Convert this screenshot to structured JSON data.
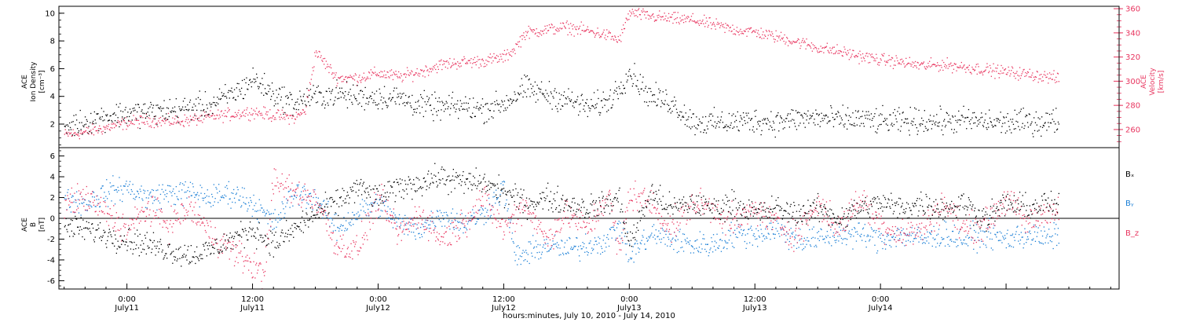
{
  "colors": {
    "black": "#000000",
    "pink": "#e8355f",
    "blue": "#1b7fd6"
  },
  "chart_data": [
    {
      "type": "scatter",
      "panel": "top",
      "ylabel_left": [
        "ACE",
        "Ion Density",
        "[cm⁻³]"
      ],
      "ylabel_right": [
        "ACE",
        "Velocity",
        "[km/s]"
      ],
      "x_range_hours": [
        -6.5,
        94.8
      ],
      "ylim_left": [
        0.3,
        10.5
      ],
      "ylim_right": [
        245,
        362
      ],
      "yticks_left": [
        2,
        4,
        6,
        8,
        10
      ],
      "yticks_right": [
        260,
        280,
        300,
        320,
        340,
        360
      ],
      "series": [
        {
          "name": "Ion Density",
          "axis": "left",
          "color": "black",
          "x": [
            -6,
            -4,
            -2,
            0,
            2,
            4,
            6,
            8,
            10,
            11,
            12,
            14,
            16,
            17,
            18,
            20,
            22,
            24,
            26,
            28,
            30,
            32,
            34,
            36,
            38,
            40,
            42,
            44,
            46,
            48,
            50,
            52,
            54,
            56,
            58,
            60,
            62,
            64,
            66,
            68,
            70,
            72,
            74,
            76,
            78,
            80,
            82,
            84,
            86,
            88,
            89
          ],
          "y": [
            1.8,
            2.2,
            2.6,
            2.8,
            2.9,
            3.0,
            3.2,
            3.4,
            4.2,
            4.6,
            5.3,
            4.2,
            3.5,
            3.9,
            4.0,
            4.2,
            4.0,
            4.0,
            3.9,
            3.4,
            3.2,
            3.3,
            3.1,
            3.5,
            4.6,
            4.2,
            3.8,
            3.2,
            3.7,
            5.8,
            4.0,
            3.6,
            2.2,
            2.1,
            2.2,
            2.3,
            2.2,
            2.4,
            2.5,
            2.3,
            2.4,
            2.2,
            2.2,
            2.3,
            2.2,
            2.3,
            2.2,
            2.1,
            2.2,
            2.2,
            2.3
          ],
          "spread": 0.45
        },
        {
          "name": "Velocity",
          "axis": "right",
          "color": "pink",
          "x": [
            -6,
            -4,
            -2,
            0,
            2,
            4,
            6,
            8,
            10,
            12,
            14,
            16,
            17,
            18,
            20,
            22,
            24,
            26,
            28,
            30,
            32,
            34,
            36,
            37,
            38,
            40,
            42,
            44,
            46,
            47,
            48,
            50,
            52,
            54,
            56,
            58,
            60,
            62,
            64,
            66,
            68,
            70,
            72,
            74,
            76,
            78,
            80,
            82,
            84,
            86,
            88,
            89
          ],
          "y": [
            256,
            258,
            262,
            266,
            268,
            267,
            268,
            271,
            273,
            275,
            272,
            270,
            276,
            325,
            303,
            303,
            307,
            304,
            308,
            314,
            316,
            317,
            320,
            327,
            340,
            343,
            345,
            342,
            338,
            334,
            357,
            354,
            352,
            351,
            347,
            343,
            341,
            337,
            333,
            328,
            325,
            321,
            318,
            316,
            313,
            314,
            312,
            310,
            308,
            306,
            304,
            302
          ],
          "spread": 2.5
        }
      ]
    },
    {
      "type": "scatter",
      "panel": "bottom",
      "ylabel": [
        "ACE",
        "B",
        "[nT]"
      ],
      "x_range_hours": [
        -6.5,
        94.8
      ],
      "ylim": [
        -6.8,
        6.8
      ],
      "yticks": [
        -6,
        -4,
        -2,
        0,
        2,
        4,
        6
      ],
      "zero_line": true,
      "legend": [
        "Bₓ",
        "Bᵧ",
        "B_z"
      ],
      "x_tick_labels": [
        {
          "hours": 0,
          "time": "0:00",
          "date": "July11"
        },
        {
          "hours": 12,
          "time": "12:00",
          "date": "July11"
        },
        {
          "hours": 24,
          "time": "0:00",
          "date": "July12"
        },
        {
          "hours": 36,
          "time": "12:00",
          "date": "July12"
        },
        {
          "hours": 48,
          "time": "0:00",
          "date": "July13"
        },
        {
          "hours": 60,
          "time": "12:00",
          "date": "July13"
        },
        {
          "hours": 72,
          "time": "0:00",
          "date": "July14"
        }
      ],
      "xlabel": "hours:minutes, July 10, 2010 - July 14, 2010",
      "series": [
        {
          "name": "Bx",
          "color": "black",
          "x": [
            -6,
            -4,
            -2,
            0,
            2,
            4,
            6,
            8,
            10,
            12,
            14,
            16,
            18,
            20,
            22,
            24,
            26,
            28,
            30,
            32,
            34,
            36,
            38,
            40,
            42,
            44,
            46,
            47,
            48,
            50,
            52,
            54,
            56,
            58,
            60,
            62,
            64,
            66,
            68,
            70,
            72,
            74,
            76,
            78,
            80,
            82,
            84,
            86,
            88,
            89
          ],
          "y": [
            -0.8,
            -1.0,
            -1.5,
            -2.0,
            -2.5,
            -3.0,
            -3.5,
            -3.0,
            -2.0,
            -1.0,
            -2.5,
            -1.0,
            0.5,
            1.5,
            3.0,
            2.0,
            3.0,
            3.5,
            4.0,
            3.5,
            3.5,
            2.5,
            1.5,
            2.0,
            1.5,
            1.0,
            1.5,
            2.0,
            -2.5,
            2.5,
            1.0,
            1.5,
            1.0,
            1.5,
            0.5,
            1.0,
            0.5,
            1.0,
            0.0,
            1.0,
            1.5,
            1.0,
            1.5,
            1.0,
            1.5,
            0.0,
            1.5,
            1.0,
            1.5,
            1.0
          ],
          "spread": 0.6
        },
        {
          "name": "By",
          "color": "blue",
          "x": [
            -6,
            -4,
            -2,
            0,
            2,
            4,
            6,
            8,
            10,
            12,
            14,
            16,
            18,
            20,
            22,
            24,
            26,
            28,
            30,
            32,
            34,
            36,
            37,
            38,
            40,
            42,
            44,
            46,
            47,
            48,
            50,
            52,
            54,
            56,
            58,
            60,
            62,
            64,
            66,
            68,
            70,
            72,
            74,
            76,
            78,
            80,
            82,
            84,
            86,
            88,
            89
          ],
          "y": [
            2.0,
            1.5,
            2.5,
            3.0,
            2.0,
            2.5,
            2.5,
            2.0,
            2.5,
            1.5,
            -0.5,
            2.5,
            2.0,
            -1.0,
            0.5,
            1.5,
            -0.5,
            -1.0,
            0.5,
            -0.5,
            0.5,
            3.0,
            -3.5,
            -3.5,
            -2.5,
            -3.0,
            -2.5,
            -2.0,
            -0.5,
            -3.5,
            -1.5,
            -2.0,
            -2.5,
            -2.5,
            -1.5,
            -1.5,
            -1.0,
            -2.0,
            -2.0,
            -1.5,
            -1.5,
            -2.0,
            -1.5,
            -2.0,
            -1.5,
            -2.0,
            -1.5,
            -2.0,
            -1.5,
            -2.0,
            -1.5
          ],
          "spread": 0.6
        },
        {
          "name": "Bz",
          "color": "pink",
          "x": [
            -6,
            -4,
            -2,
            0,
            2,
            4,
            6,
            8,
            10,
            12,
            13,
            14,
            16,
            18,
            20,
            22,
            24,
            26,
            28,
            30,
            32,
            34,
            36,
            38,
            40,
            42,
            44,
            46,
            47,
            48,
            50,
            52,
            54,
            56,
            58,
            60,
            62,
            64,
            66,
            68,
            70,
            72,
            74,
            76,
            78,
            80,
            82,
            84,
            86,
            88,
            89
          ],
          "y": [
            1.5,
            2.0,
            0.5,
            -1.0,
            1.0,
            -0.5,
            1.0,
            -1.5,
            -3.0,
            -4.5,
            -5.5,
            3.5,
            2.5,
            2.0,
            -2.5,
            -3.0,
            2.0,
            -1.5,
            0.5,
            -2.0,
            -0.5,
            2.0,
            -1.0,
            1.5,
            -2.0,
            0.5,
            -1.0,
            2.5,
            -3.5,
            2.5,
            1.5,
            -1.0,
            1.5,
            1.0,
            -0.5,
            1.0,
            -0.5,
            -1.5,
            1.5,
            -1.0,
            2.0,
            -0.5,
            -1.5,
            -1.0,
            1.5,
            -1.0,
            -0.5,
            2.0,
            -0.5,
            1.0,
            0.5
          ],
          "spread": 0.7
        }
      ]
    }
  ]
}
